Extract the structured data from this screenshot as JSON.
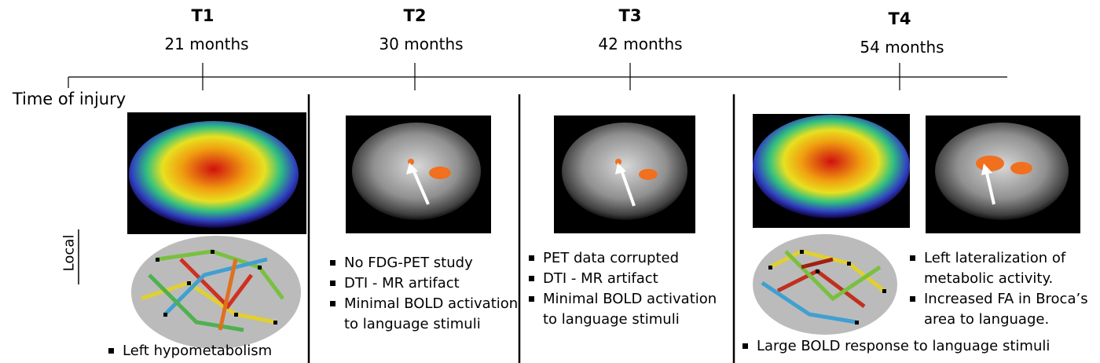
{
  "timeline": {
    "start_label": "Time of injury",
    "points": [
      {
        "label": "T1",
        "time": "21 months"
      },
      {
        "label": "T2",
        "time": "30 months"
      },
      {
        "label": "T3",
        "time": "42 months"
      },
      {
        "label": "T4",
        "time": "54 months"
      }
    ]
  },
  "side_label": "Local",
  "panels": [
    {
      "bullets": [
        "Left hypometabolism"
      ]
    },
    {
      "bullets": [
        "No FDG-PET study",
        "DTI - MR artifact",
        "Minimal BOLD activation to language stimuli"
      ]
    },
    {
      "bullets": [
        "PET data corrupted",
        "DTI - MR artifact",
        "Minimal BOLD activation to language stimuli"
      ]
    },
    {
      "bullets": [
        "Left lateralization of metabolic activity.",
        "Increased FA in Broca’s area to language.",
        "Large BOLD response to language stimuli"
      ]
    }
  ]
}
